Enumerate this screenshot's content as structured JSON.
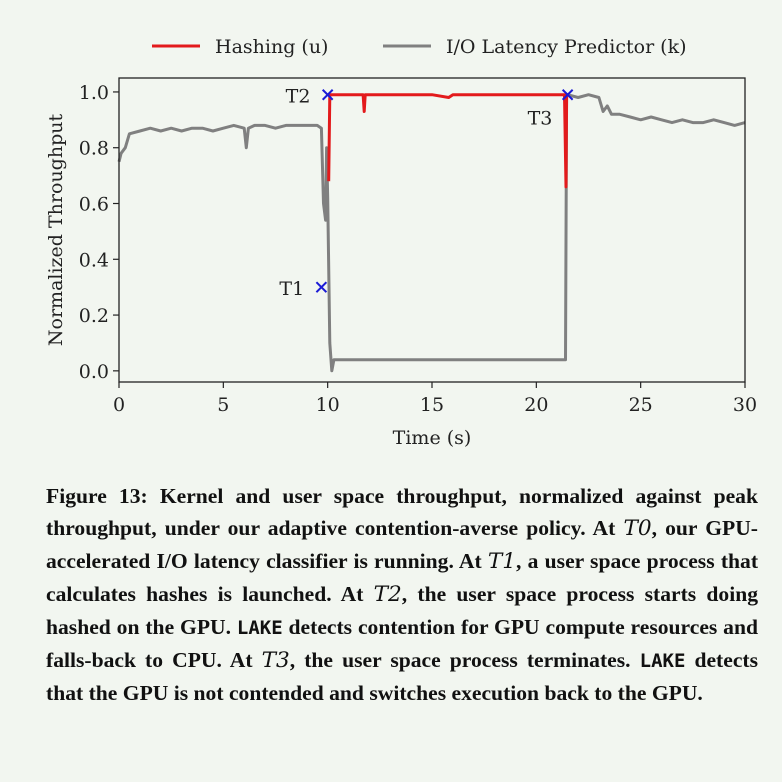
{
  "chart_data": {
    "type": "line",
    "xlabel": "Time (s)",
    "ylabel": "Normalized Throughput",
    "xlim": [
      0,
      30
    ],
    "ylim": [
      -0.04,
      1.05
    ],
    "xticks": [
      "0",
      "5",
      "10",
      "15",
      "20",
      "25",
      "30"
    ],
    "xtick_values": [
      0,
      5,
      10,
      15,
      20,
      25,
      30
    ],
    "yticks": [
      "0.0",
      "0.2",
      "0.4",
      "0.6",
      "0.8",
      "1.0"
    ],
    "ytick_values": [
      0.0,
      0.2,
      0.4,
      0.6,
      0.8,
      1.0
    ],
    "grid": false,
    "legend_placement": "top-center outside",
    "series": [
      {
        "name": "Hashing (u)",
        "color": "#e31a1c",
        "x": [
          10.05,
          10.1,
          10.15,
          11,
          11.7,
          11.75,
          11.8,
          12,
          13,
          14,
          15,
          15.8,
          16,
          17,
          18,
          19,
          20,
          21,
          21.35,
          21.42,
          21.45
        ],
        "y": [
          0.68,
          0.99,
          0.99,
          0.99,
          0.99,
          0.93,
          0.99,
          0.99,
          0.99,
          0.99,
          0.99,
          0.98,
          0.99,
          0.99,
          0.99,
          0.99,
          0.99,
          0.99,
          0.99,
          0.66,
          0.99
        ]
      },
      {
        "name": "I/O Latency Predictor (k)",
        "color": "#808080",
        "x": [
          0,
          0.1,
          0.3,
          0.5,
          1,
          1.5,
          2,
          2.5,
          3,
          3.5,
          4,
          4.5,
          5,
          5.5,
          6,
          6.1,
          6.2,
          6.5,
          7,
          7.5,
          8,
          8.5,
          9,
          9.5,
          9.7,
          9.8,
          9.9,
          9.95,
          10.0,
          10.1,
          10.2,
          10.3,
          11,
          12,
          13,
          14,
          15,
          16,
          17,
          18,
          19,
          20,
          21,
          21.4,
          21.45,
          21.5,
          22,
          22.5,
          23,
          23.2,
          23.4,
          23.6,
          24,
          24.5,
          25,
          25.5,
          26,
          26.5,
          27,
          27.5,
          28,
          28.5,
          29,
          29.5,
          30
        ],
        "y": [
          0.75,
          0.78,
          0.8,
          0.85,
          0.86,
          0.87,
          0.86,
          0.87,
          0.86,
          0.87,
          0.87,
          0.86,
          0.87,
          0.88,
          0.87,
          0.8,
          0.87,
          0.88,
          0.88,
          0.87,
          0.88,
          0.88,
          0.88,
          0.88,
          0.87,
          0.6,
          0.54,
          0.8,
          0.62,
          0.1,
          0.0,
          0.04,
          0.04,
          0.04,
          0.04,
          0.04,
          0.04,
          0.04,
          0.04,
          0.04,
          0.04,
          0.04,
          0.04,
          0.04,
          0.99,
          0.99,
          0.98,
          0.99,
          0.98,
          0.93,
          0.95,
          0.92,
          0.92,
          0.91,
          0.9,
          0.91,
          0.9,
          0.89,
          0.9,
          0.89,
          0.89,
          0.9,
          0.89,
          0.88,
          0.89
        ]
      }
    ],
    "annotations": [
      {
        "label": "T1",
        "x": 9.7,
        "y": 0.3
      },
      {
        "label": "T2",
        "x": 10.0,
        "y": 0.99
      },
      {
        "label": "T3",
        "x": 21.5,
        "y": 0.99
      }
    ],
    "marker_color": "#1a1ad6"
  },
  "caption": {
    "figure_label": "Figure 13:",
    "part1": "Kernel and user space throughput, normalized against peak throughput, under our adaptive contention-averse policy. At ",
    "t0": "T0",
    "part2": ", our GPU-accelerated I/O latency clas­sifier is running. At ",
    "t1": "T1",
    "part3": ", a user space process that calculates hashes is launched. At ",
    "t2": "T2",
    "part4": ", the user space process starts do­ing hashed on the GPU. ",
    "lake1": "LAKE",
    "part5": " detects contention for GPU compute resources and falls-back to CPU. At ",
    "t3": "T3",
    "part6": ", the user space process terminates. ",
    "lake2": "LAKE",
    "part7": " detects that the GPU is not contended and switches execution back to the GPU."
  }
}
